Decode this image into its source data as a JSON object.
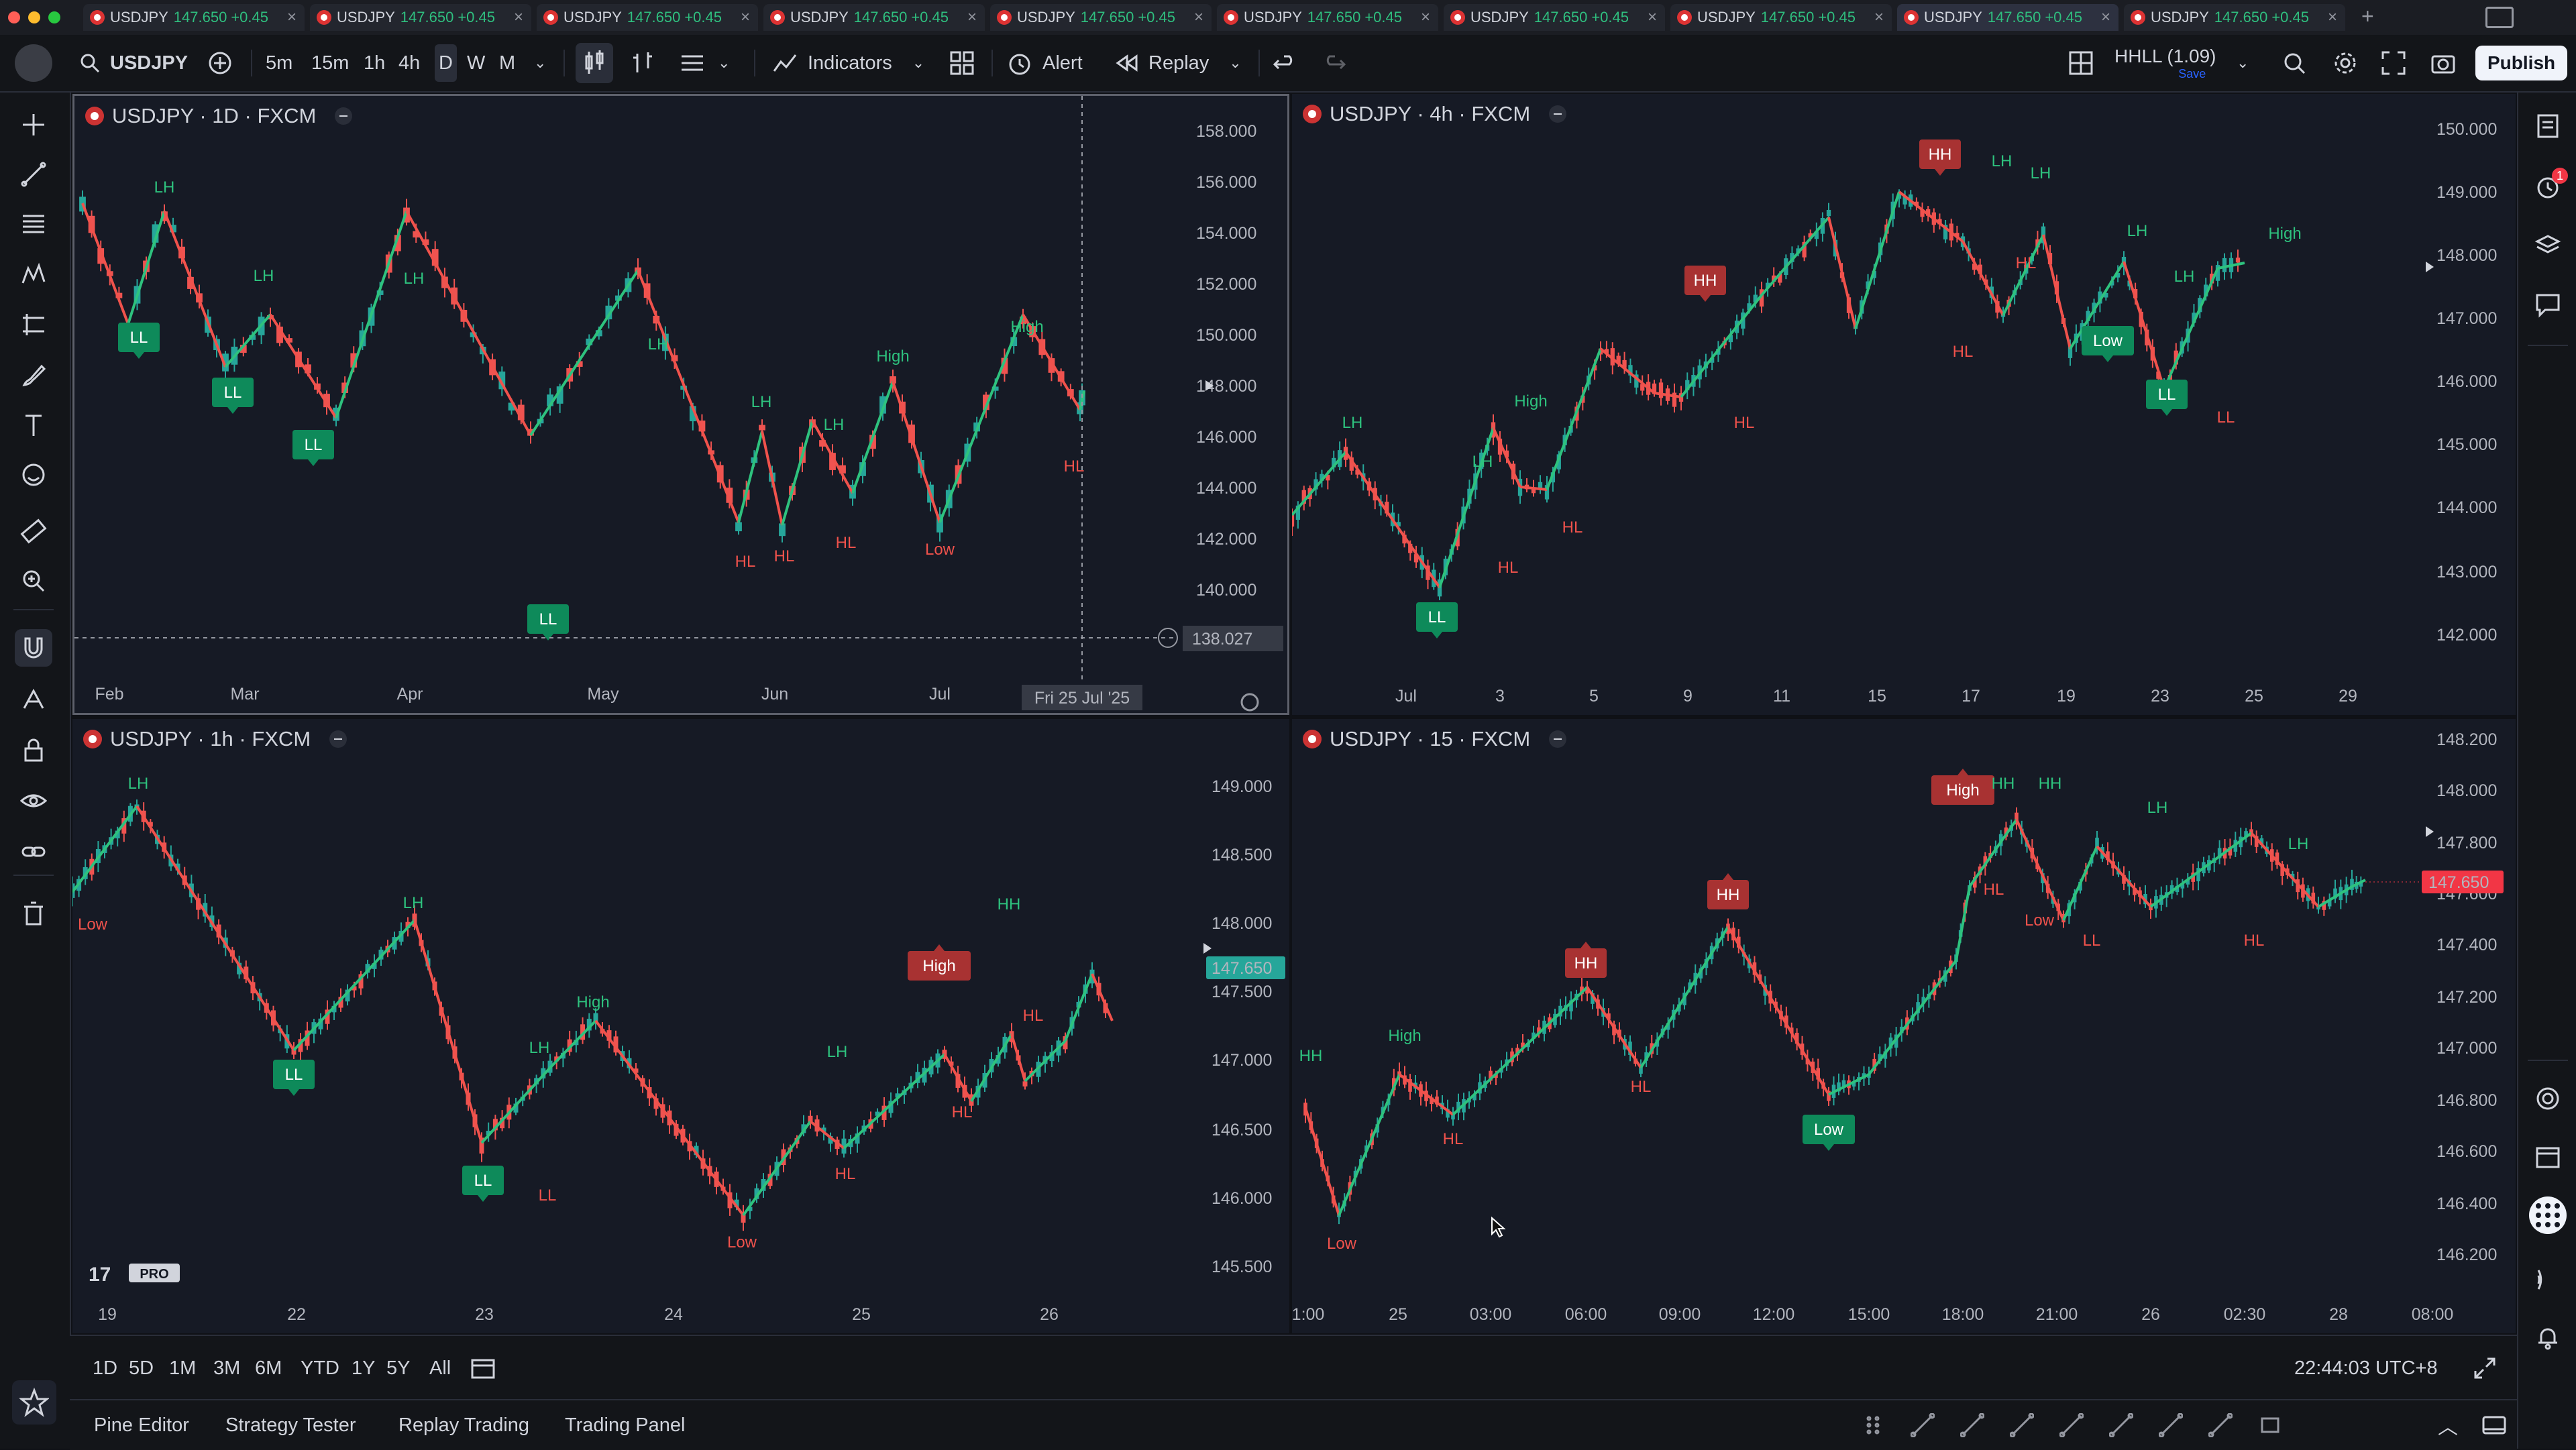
{
  "tabs": [
    {
      "label": "USDJPY",
      "price": "147.650",
      "change": "+0.45"
    },
    {
      "label": "USDJPY",
      "price": "147.650",
      "change": "+0.45"
    },
    {
      "label": "USDJPY",
      "price": "147.650",
      "change": "+0.45"
    },
    {
      "label": "USDJPY",
      "price": "147.650",
      "change": "+0.45"
    },
    {
      "label": "USDJPY",
      "price": "147.650",
      "change": "+0.45"
    },
    {
      "label": "USDJPY",
      "price": "147.650",
      "change": "+0.45"
    },
    {
      "label": "USDJPY",
      "price": "147.650",
      "change": "+0.45"
    },
    {
      "label": "USDJPY",
      "price": "147.650",
      "change": "+0.45"
    },
    {
      "label": "USDJPY",
      "price": "147.650",
      "change": "+0.45"
    },
    {
      "label": "USDJPY",
      "price": "147.650",
      "change": "+0.45"
    }
  ],
  "active_tab_index": 8,
  "toolbar": {
    "symbol": "USDJPY",
    "intervals": [
      "5m",
      "15m",
      "1h",
      "4h",
      "D",
      "W",
      "M"
    ],
    "active_interval": "D",
    "indicators_label": "Indicators",
    "alert_label": "Alert",
    "replay_label": "Replay",
    "layout_name": "HHLL (1.09)",
    "layout_sub": "Save",
    "publish_label": "Publish"
  },
  "left_tools": [
    "crosshair-icon",
    "trend-line-icon",
    "fib-icon",
    "pattern-icon",
    "projection-icon",
    "brush-icon",
    "text-icon",
    "emoji-icon",
    "ruler-icon",
    "zoom-icon",
    "magnet-icon",
    "lock-drawing-icon",
    "lock-icon",
    "eye-icon",
    "link-icon",
    "trash-icon"
  ],
  "right_tools": [
    "watchlist-icon",
    "alerts-icon",
    "layers-icon",
    "chat-icon",
    "target-icon",
    "calendar-icon",
    "apps-icon",
    "signal-icon",
    "bell-icon"
  ],
  "alerts_badge": "1",
  "panes": [
    {
      "title": "USDJPY · 1D · FXCM",
      "price_labels": [
        "158.000",
        "156.000",
        "154.000",
        "152.000",
        "150.000",
        "148.000",
        "146.000",
        "144.000",
        "142.000",
        "140.000"
      ],
      "time_labels": [
        "Feb",
        "Mar",
        "Apr",
        "May",
        "Jun",
        "Jul"
      ],
      "crosshair_price": "138.027",
      "crosshair_date": "Fri 25 Jul '25",
      "swing_labels": [
        {
          "t": "LH",
          "kind": "text",
          "color": "green"
        },
        {
          "t": "LL",
          "kind": "box",
          "color": "green"
        },
        {
          "t": "LL",
          "kind": "box",
          "color": "green"
        },
        {
          "t": "LH",
          "kind": "text",
          "color": "green"
        },
        {
          "t": "LL",
          "kind": "box",
          "color": "green"
        },
        {
          "t": "LH",
          "kind": "text",
          "color": "green"
        },
        {
          "t": "LL",
          "kind": "box",
          "color": "green"
        },
        {
          "t": "LH",
          "kind": "text",
          "color": "green"
        },
        {
          "t": "LH",
          "kind": "text",
          "color": "green"
        },
        {
          "t": "HL",
          "kind": "text",
          "color": "red"
        },
        {
          "t": "HL",
          "kind": "text",
          "color": "red"
        },
        {
          "t": "LH",
          "kind": "text",
          "color": "green"
        },
        {
          "t": "HL",
          "kind": "text",
          "color": "red"
        },
        {
          "t": "High",
          "kind": "text",
          "color": "green"
        },
        {
          "t": "Low",
          "kind": "text",
          "color": "red"
        },
        {
          "t": "High",
          "kind": "text",
          "color": "green"
        },
        {
          "t": "HL",
          "kind": "text",
          "color": "red"
        }
      ]
    },
    {
      "title": "USDJPY · 4h · FXCM",
      "price_labels": [
        "150.000",
        "149.000",
        "148.000",
        "147.000",
        "146.000",
        "145.000",
        "144.000",
        "143.000",
        "142.000"
      ],
      "time_labels": [
        "Jul",
        "3",
        "5",
        "9",
        "11",
        "15",
        "17",
        "19",
        "23",
        "25",
        "29"
      ],
      "swing_labels": [
        {
          "t": "LH",
          "kind": "text",
          "color": "green"
        },
        {
          "t": "LL",
          "kind": "box",
          "color": "green"
        },
        {
          "t": "LH",
          "kind": "text",
          "color": "green"
        },
        {
          "t": "HL",
          "kind": "text",
          "color": "red"
        },
        {
          "t": "High",
          "kind": "text",
          "color": "green"
        },
        {
          "t": "HL",
          "kind": "text",
          "color": "red"
        },
        {
          "t": "HH",
          "kind": "box",
          "color": "red"
        },
        {
          "t": "HL",
          "kind": "text",
          "color": "red"
        },
        {
          "t": "HH",
          "kind": "box",
          "color": "red"
        },
        {
          "t": "HL",
          "kind": "text",
          "color": "red"
        },
        {
          "t": "LH",
          "kind": "text",
          "color": "green"
        },
        {
          "t": "LH",
          "kind": "text",
          "color": "green"
        },
        {
          "t": "HL",
          "kind": "text",
          "color": "red"
        },
        {
          "t": "LH",
          "kind": "text",
          "color": "green"
        },
        {
          "t": "Low",
          "kind": "box",
          "color": "green"
        },
        {
          "t": "LH",
          "kind": "text",
          "color": "green"
        },
        {
          "t": "LL",
          "kind": "box",
          "color": "green"
        },
        {
          "t": "LL",
          "kind": "text",
          "color": "red"
        },
        {
          "t": "High",
          "kind": "text",
          "color": "green"
        }
      ]
    },
    {
      "title": "USDJPY · 1h · FXCM",
      "price_labels": [
        "149.000",
        "148.500",
        "148.000",
        "147.500",
        "147.000",
        "146.500",
        "146.000",
        "145.500"
      ],
      "time_labels": [
        "19",
        "22",
        "23",
        "24",
        "25",
        "26"
      ],
      "current_price": "147.650",
      "logo": "PRO",
      "swing_labels": [
        {
          "t": "LH",
          "kind": "text",
          "color": "green"
        },
        {
          "t": "Low",
          "kind": "text",
          "color": "red"
        },
        {
          "t": "LL",
          "kind": "box",
          "color": "green"
        },
        {
          "t": "LH",
          "kind": "text",
          "color": "green"
        },
        {
          "t": "LL",
          "kind": "box",
          "color": "green"
        },
        {
          "t": "LL",
          "kind": "text",
          "color": "red"
        },
        {
          "t": "LH",
          "kind": "text",
          "color": "green"
        },
        {
          "t": "High",
          "kind": "text",
          "color": "green"
        },
        {
          "t": "Low",
          "kind": "text",
          "color": "red"
        },
        {
          "t": "HL",
          "kind": "text",
          "color": "red"
        },
        {
          "t": "LH",
          "kind": "text",
          "color": "green"
        },
        {
          "t": "HL",
          "kind": "text",
          "color": "red"
        },
        {
          "t": "High",
          "kind": "box",
          "color": "red"
        },
        {
          "t": "HH",
          "kind": "text",
          "color": "green"
        },
        {
          "t": "HL",
          "kind": "text",
          "color": "red"
        }
      ]
    },
    {
      "title": "USDJPY · 15 · FXCM",
      "price_labels": [
        "148.200",
        "148.000",
        "147.800",
        "147.600",
        "147.400",
        "147.200",
        "147.000",
        "146.800",
        "146.600",
        "146.400",
        "146.200"
      ],
      "time_labels": [
        "1:00",
        "25",
        "03:00",
        "06:00",
        "09:00",
        "12:00",
        "15:00",
        "18:00",
        "21:00",
        "26",
        "02:30",
        "28",
        "08:00"
      ],
      "current_price": "147.650",
      "swing_labels": [
        {
          "t": "HH",
          "kind": "text",
          "color": "green"
        },
        {
          "t": "Low",
          "kind": "text",
          "color": "red"
        },
        {
          "t": "High",
          "kind": "text",
          "color": "green"
        },
        {
          "t": "HL",
          "kind": "text",
          "color": "red"
        },
        {
          "t": "HH",
          "kind": "box",
          "color": "red"
        },
        {
          "t": "HL",
          "kind": "text",
          "color": "red"
        },
        {
          "t": "HH",
          "kind": "box",
          "color": "red"
        },
        {
          "t": "Low",
          "kind": "box",
          "color": "green"
        },
        {
          "t": "High",
          "kind": "box",
          "color": "red"
        },
        {
          "t": "HH",
          "kind": "text",
          "color": "green"
        },
        {
          "t": "HL",
          "kind": "text",
          "color": "red"
        },
        {
          "t": "HH",
          "kind": "text",
          "color": "green"
        },
        {
          "t": "Low",
          "kind": "text",
          "color": "red"
        },
        {
          "t": "LL",
          "kind": "text",
          "color": "red"
        },
        {
          "t": "LH",
          "kind": "text",
          "color": "green"
        },
        {
          "t": "HL",
          "kind": "text",
          "color": "red"
        },
        {
          "t": "LH",
          "kind": "text",
          "color": "green"
        }
      ]
    }
  ],
  "ranges": [
    "1D",
    "5D",
    "1M",
    "3M",
    "6M",
    "YTD",
    "1Y",
    "5Y",
    "All"
  ],
  "clock": "22:44:03 UTC+8",
  "bottom_tabs": [
    "Pine Editor",
    "Strategy Tester",
    "Replay Trading",
    "Trading Panel"
  ],
  "colors": {
    "up": "#26a69a",
    "down": "#ef5350",
    "zig_up": "#2ec27e",
    "zig_down": "#f0524c",
    "bg": "#161a25",
    "label_green": "#0e8a5a",
    "label_red": "#a83232",
    "price_tag": "#26a69a",
    "price_tag_red": "#f23645"
  }
}
